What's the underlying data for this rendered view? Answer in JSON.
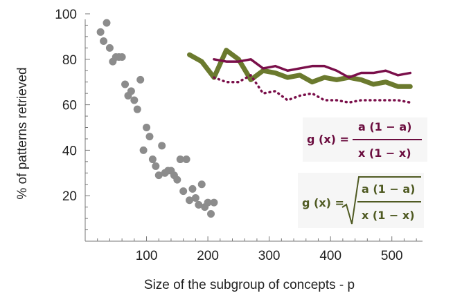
{
  "chart_data": {
    "type": "scatter+line",
    "title": "",
    "xlabel": "Size of the subgroup of concepts - p",
    "ylabel": "% of patterns retrieved",
    "xlim": [
      0,
      550
    ],
    "ylim": [
      0,
      100
    ],
    "xticks": [
      100,
      200,
      300,
      400,
      500
    ],
    "yticks": [
      20,
      40,
      60,
      80,
      100
    ],
    "grid": false,
    "series": [
      {
        "name": "scatter-points",
        "kind": "scatter",
        "color": "#8c8c8c",
        "points": [
          [
            25,
            92
          ],
          [
            30,
            88
          ],
          [
            35,
            96
          ],
          [
            40,
            85
          ],
          [
            45,
            79
          ],
          [
            50,
            81
          ],
          [
            55,
            81
          ],
          [
            60,
            81
          ],
          [
            65,
            69
          ],
          [
            70,
            64
          ],
          [
            75,
            66
          ],
          [
            80,
            62
          ],
          [
            85,
            58
          ],
          [
            90,
            71
          ],
          [
            95,
            40
          ],
          [
            100,
            50
          ],
          [
            105,
            46
          ],
          [
            110,
            36
          ],
          [
            115,
            33
          ],
          [
            120,
            29
          ],
          [
            125,
            42
          ],
          [
            130,
            30
          ],
          [
            135,
            31
          ],
          [
            140,
            31
          ],
          [
            145,
            29
          ],
          [
            150,
            27
          ],
          [
            155,
            36
          ],
          [
            160,
            22
          ],
          [
            165,
            36
          ],
          [
            170,
            18
          ],
          [
            175,
            23
          ],
          [
            180,
            19
          ],
          [
            185,
            16
          ],
          [
            190,
            25
          ],
          [
            195,
            15
          ],
          [
            200,
            17
          ],
          [
            205,
            12
          ],
          [
            210,
            17
          ]
        ]
      },
      {
        "name": "olive-line",
        "kind": "line",
        "color": "#6b7a2e",
        "x": [
          170,
          190,
          210,
          230,
          250,
          270,
          290,
          310,
          330,
          350,
          370,
          390,
          410,
          430,
          450,
          470,
          490,
          510,
          530
        ],
        "y": [
          82,
          79,
          72,
          84,
          80,
          71,
          75,
          74,
          72,
          73,
          70,
          72,
          71,
          72,
          71,
          69,
          70,
          68,
          68
        ]
      },
      {
        "name": "purple-line",
        "kind": "line",
        "color": "#7a0f4a",
        "x": [
          210,
          230,
          250,
          270,
          290,
          310,
          330,
          350,
          370,
          390,
          410,
          430,
          450,
          470,
          490,
          510,
          530
        ],
        "y": [
          80,
          79,
          79,
          80,
          76,
          77,
          75,
          76,
          77,
          77,
          75,
          72,
          74,
          74,
          75,
          73,
          74
        ]
      },
      {
        "name": "purple-dotted-line",
        "kind": "line",
        "style": "dotted",
        "color": "#7a0f4a",
        "x": [
          210,
          230,
          250,
          270,
          290,
          310,
          330,
          350,
          370,
          390,
          410,
          430,
          450,
          470,
          490,
          510,
          530
        ],
        "y": [
          72,
          70,
          70,
          73,
          65,
          66,
          62,
          64,
          65,
          62,
          62,
          61,
          62,
          62,
          62,
          62,
          61
        ]
      }
    ]
  },
  "formulas": {
    "f1": {
      "lhs": "g (x) =",
      "numerator": "a (1 − a)",
      "denominator": "x (1 − x)",
      "color": "#6b0d3f"
    },
    "f2": {
      "lhs": "g (x) =",
      "numerator": "a (1 − a)",
      "denominator": "x (1 − x)",
      "color": "#4f5a22"
    }
  }
}
